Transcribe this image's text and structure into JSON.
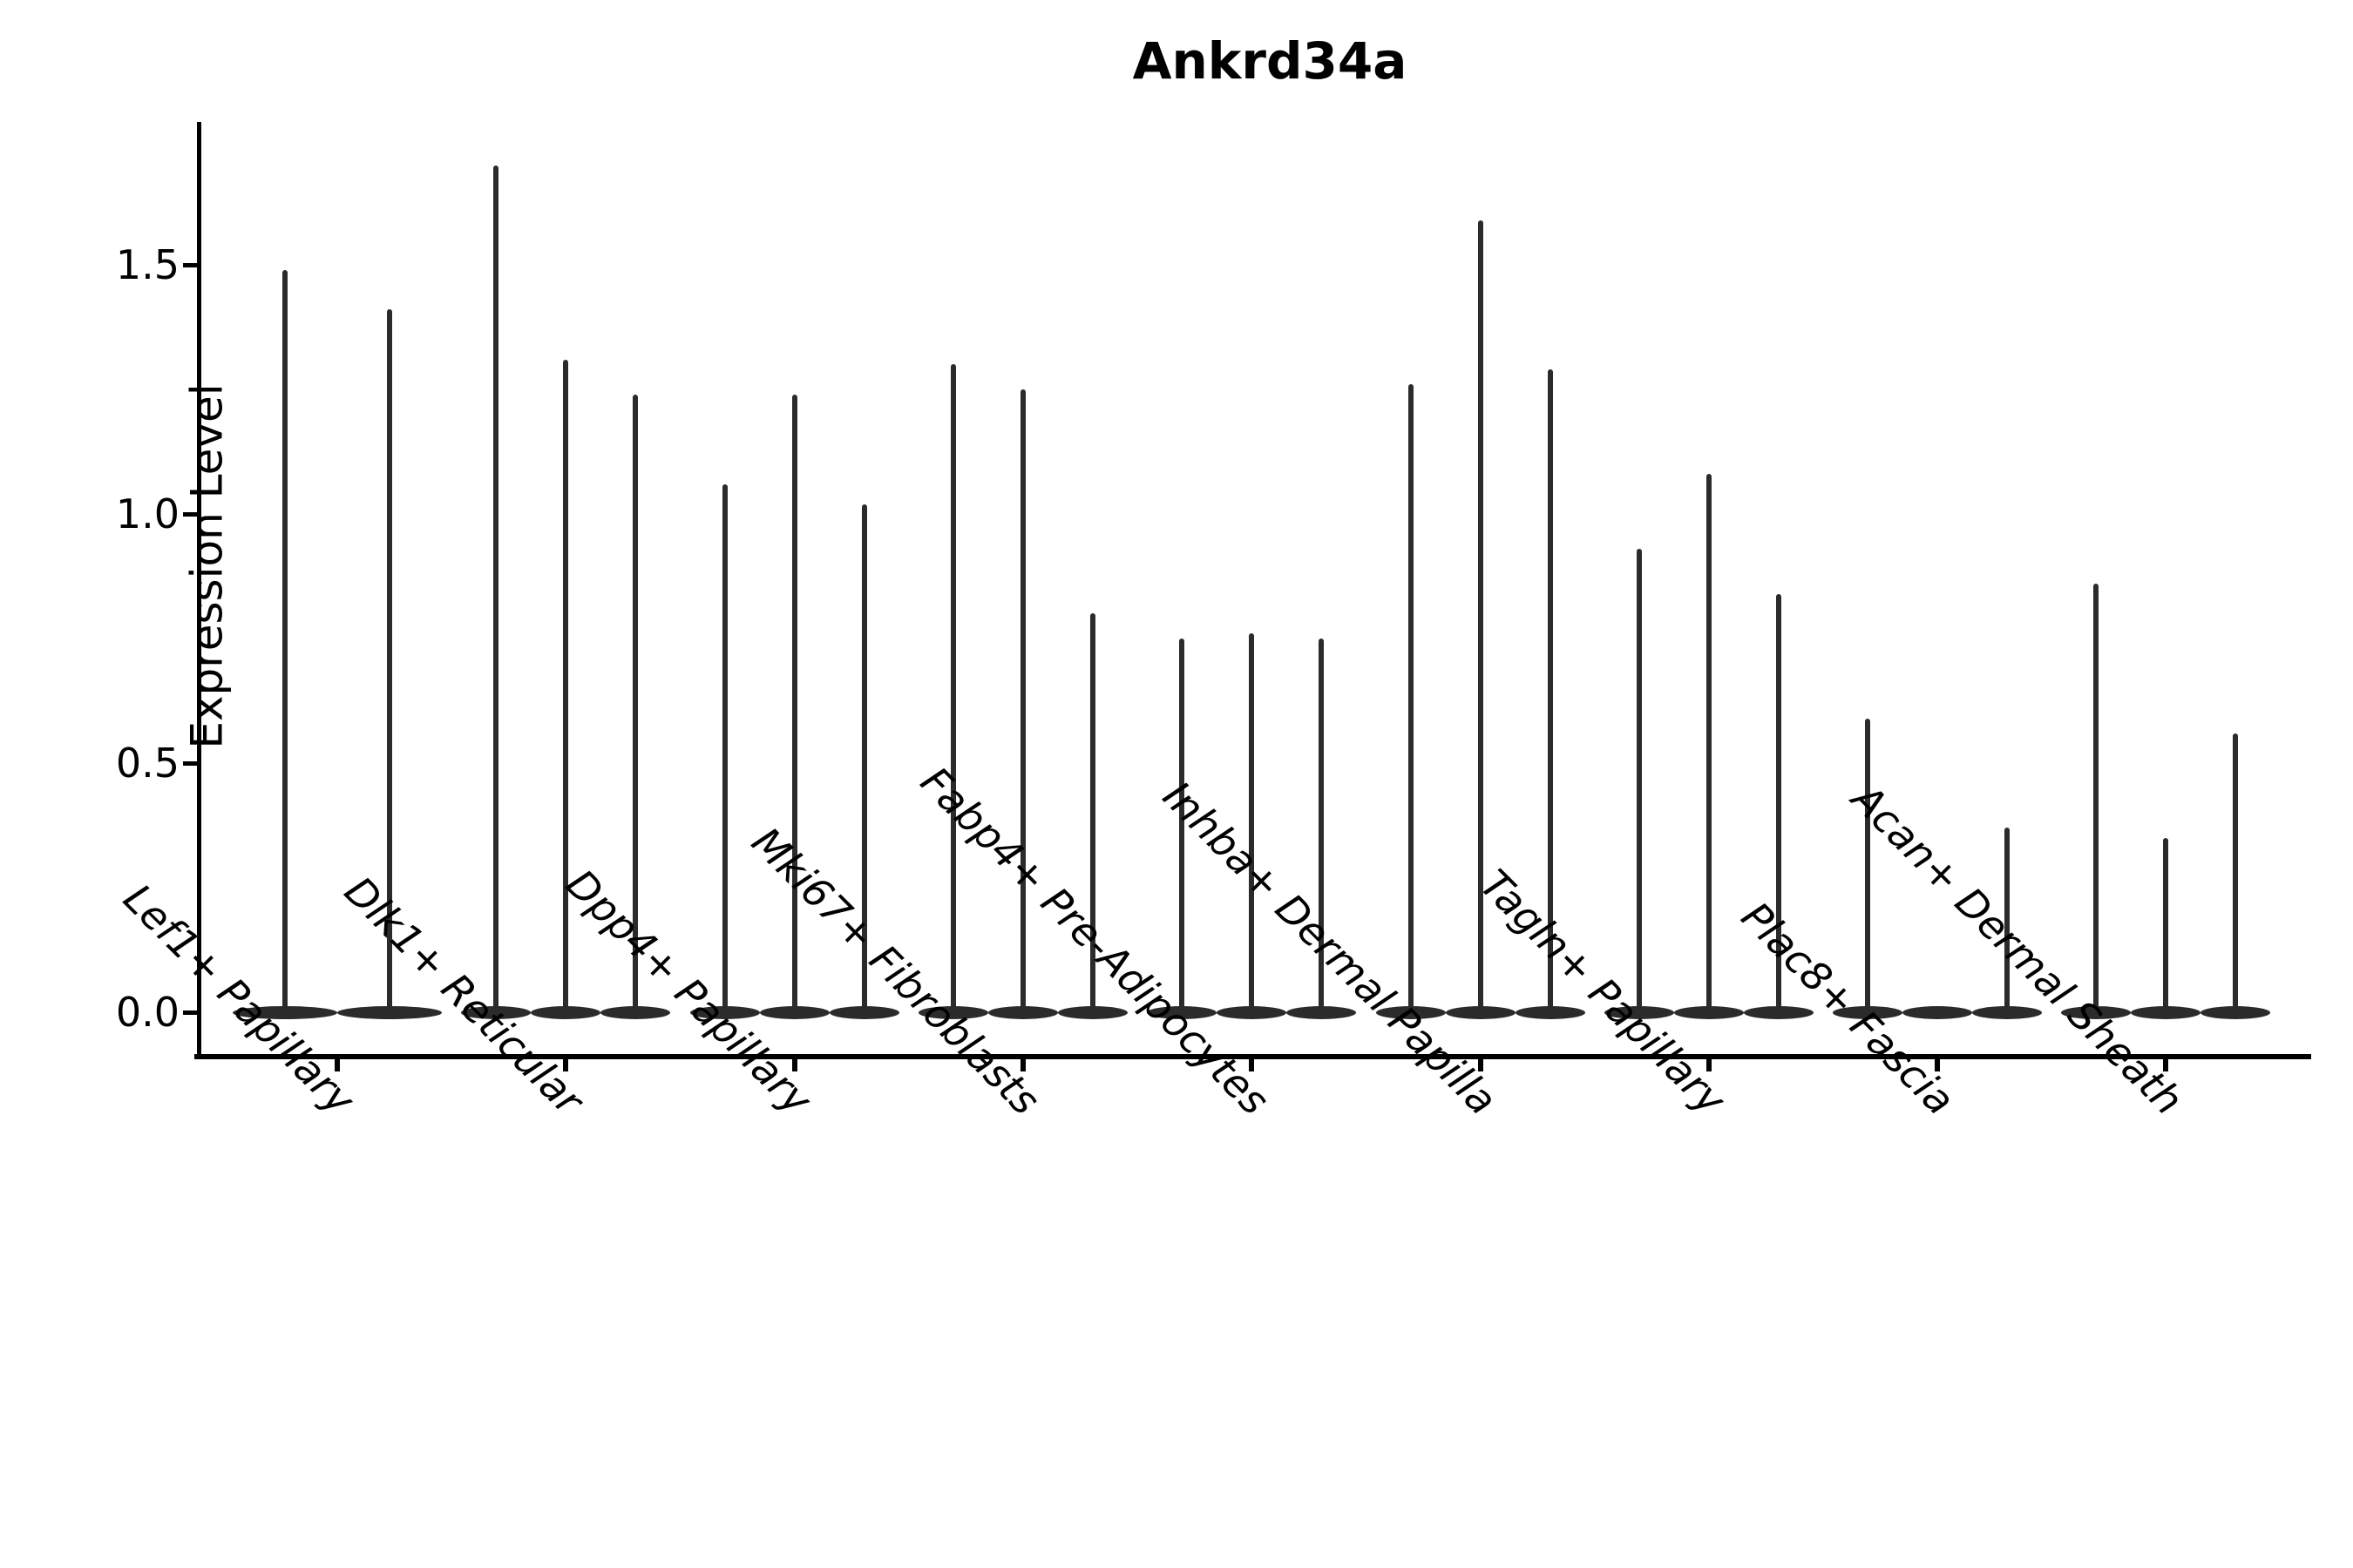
{
  "chart_data": {
    "type": "violin",
    "title": "Ankrd34a",
    "ylabel": "Expression Level",
    "xlabel": "",
    "ylim": [
      -0.09,
      1.79
    ],
    "yticks": [
      0.0,
      0.5,
      1.0,
      1.5
    ],
    "ytick_labels": [
      "0.0",
      "0.5",
      "1.0",
      "1.5"
    ],
    "grid": false,
    "legend": "none",
    "categories": [
      "Lef1+ Papillary",
      "Dlk1+ Reticular",
      "Dpp4+ Papillary",
      "Mki67+ Fibroblasts",
      "Fabp4+ Pre-Adipocytes",
      "Inhba+ Dermal Papilla",
      "Tagln+ Papillary",
      "Plac8+ Fascia",
      "Acan+ Dermal Sheath"
    ],
    "groups": [
      {
        "category": "Lef1+ Papillary",
        "violin_max_expression": [
          1.49,
          1.41
        ]
      },
      {
        "category": "Dlk1+ Reticular",
        "violin_max_expression": [
          1.7,
          1.31,
          1.24
        ]
      },
      {
        "category": "Dpp4+ Papillary",
        "violin_max_expression": [
          1.06,
          1.24,
          1.02
        ]
      },
      {
        "category": "Mki67+ Fibroblasts",
        "violin_max_expression": [
          1.3,
          1.25,
          0.8
        ]
      },
      {
        "category": "Fabp4+ Pre-Adipocytes",
        "violin_max_expression": [
          0.75,
          0.76,
          0.75
        ]
      },
      {
        "category": "Inhba+ Dermal Papilla",
        "violin_max_expression": [
          1.26,
          1.59,
          1.29
        ]
      },
      {
        "category": "Tagln+ Papillary",
        "violin_max_expression": [
          0.93,
          1.08,
          0.84
        ]
      },
      {
        "category": "Plac8+ Fascia",
        "violin_max_expression": [
          0.59,
          0.0,
          0.37
        ]
      },
      {
        "category": "Acan+ Dermal Sheath",
        "violin_max_expression": [
          0.86,
          0.35,
          0.56
        ]
      }
    ],
    "violin_color": "#2b2b2b",
    "axis_color": "#000000"
  }
}
